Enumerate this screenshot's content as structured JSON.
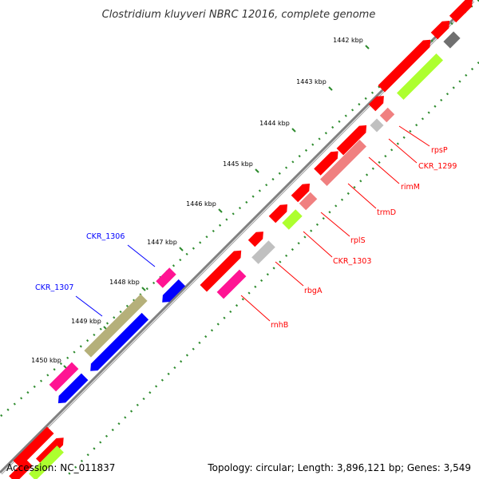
{
  "title": "Clostridium kluyveri NBRC 12016, complete genome",
  "accession_text": "Accession: NC_011837",
  "summary_text": "Topology: circular; Length: 3,896,121 bp; Genes: 3,549",
  "colors": {
    "backbone": "#808080",
    "tick_dots": "#2e8b2e",
    "cds_red": "#ff0000",
    "cds_pink": "#f08080",
    "cds_lime": "#adff2f",
    "cds_gray": "#c0c0c0",
    "cds_darkgray": "#707070",
    "cds_magenta": "#ff1493",
    "cds_blue": "#0000ff",
    "cds_olive": "#b5b07a",
    "label_plus": "#ff0000",
    "label_minus": "#0000ff"
  },
  "ticks": [
    {
      "label": "1442 kbp"
    },
    {
      "label": "1443 kbp"
    },
    {
      "label": "1444 kbp"
    },
    {
      "label": "1445 kbp"
    },
    {
      "label": "1446 kbp"
    },
    {
      "label": "1447 kbp"
    },
    {
      "label": "1448 kbp"
    },
    {
      "label": "1449 kbp"
    },
    {
      "label": "1450 kbp"
    }
  ],
  "gene_labels": [
    {
      "name": "rpsP",
      "strand": "plus"
    },
    {
      "name": "CKR_1299",
      "strand": "plus"
    },
    {
      "name": "rimM",
      "strand": "plus"
    },
    {
      "name": "trmD",
      "strand": "plus"
    },
    {
      "name": "rplS",
      "strand": "plus"
    },
    {
      "name": "CKR_1303",
      "strand": "plus"
    },
    {
      "name": "rbgA",
      "strand": "plus"
    },
    {
      "name": "rnhB",
      "strand": "plus"
    },
    {
      "name": "CKR_1306",
      "strand": "minus"
    },
    {
      "name": "CKR_1307",
      "strand": "minus"
    }
  ]
}
